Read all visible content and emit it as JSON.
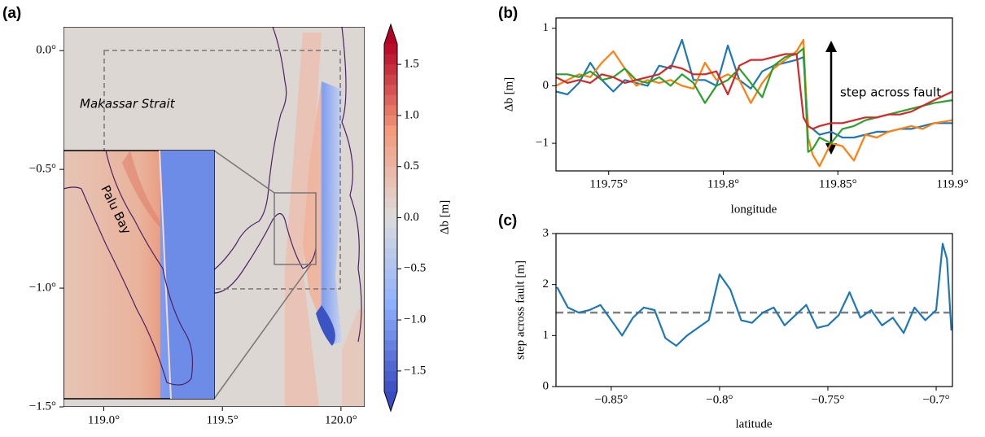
{
  "chart_data": [
    {
      "type": "map",
      "panel_label": "(a)",
      "xlim": [
        118.83,
        120.1
      ],
      "ylim": [
        -1.5,
        0.1
      ],
      "xticks": [
        {
          "value": 119.0,
          "label": "119.0°"
        },
        {
          "value": 119.5,
          "label": "119.5°"
        },
        {
          "value": 120.0,
          "label": "120.0°"
        }
      ],
      "yticks": [
        {
          "value": 0.0,
          "label": "0.0°"
        },
        {
          "value": -0.5,
          "label": "−0.5°"
        },
        {
          "value": -1.0,
          "label": "−1.0°"
        },
        {
          "value": -1.5,
          "label": "−1.5°"
        }
      ],
      "region_label": "Makassar Strait",
      "inset_label": "Palu Bay",
      "colorbar": {
        "label": "Δb [m]",
        "lim": [
          -1.7,
          1.7
        ],
        "colors": [
          "#3b4cc0",
          "#8db0fe",
          "#dddcdc",
          "#f49a7b",
          "#b40426"
        ],
        "ticks": [
          {
            "value": 1.5,
            "label": "1.5"
          },
          {
            "value": 1.0,
            "label": "1.0"
          },
          {
            "value": 0.5,
            "label": "0.5"
          },
          {
            "value": 0.0,
            "label": "0.0"
          },
          {
            "value": -0.5,
            "label": "−0.5"
          },
          {
            "value": -1.0,
            "label": "−1.0"
          },
          {
            "value": -1.5,
            "label": "−1.5"
          }
        ]
      }
    },
    {
      "type": "line",
      "panel_label": "(b)",
      "xlabel": "longitude",
      "ylabel": "Δb [m]",
      "annotation": "step across fault",
      "xlim": [
        119.727,
        119.9
      ],
      "ylim": [
        -1.48,
        1.18
      ],
      "xticks": [
        {
          "value": 119.75,
          "label": "119.75°"
        },
        {
          "value": 119.8,
          "label": "119.8°"
        },
        {
          "value": 119.85,
          "label": "119.85°"
        },
        {
          "value": 119.9,
          "label": "119.9°"
        }
      ],
      "yticks": [
        1,
        0,
        {
          "value": -1,
          "label": "−1"
        }
      ],
      "x": [
        119.727,
        119.732,
        119.737,
        119.742,
        119.747,
        119.752,
        119.757,
        119.762,
        119.767,
        119.772,
        119.777,
        119.782,
        119.787,
        119.792,
        119.797,
        119.802,
        119.807,
        119.812,
        119.817,
        119.822,
        119.827,
        119.832,
        119.835,
        119.837,
        119.839,
        119.842,
        119.847,
        119.852,
        119.857,
        119.862,
        119.867,
        119.872,
        119.877,
        119.882,
        119.887,
        119.892,
        119.9
      ],
      "series": [
        {
          "color": "#1f77b4",
          "values": [
            -0.1,
            -0.15,
            0.05,
            0.4,
            0.1,
            -0.1,
            0.1,
            0.05,
            0.0,
            0.35,
            0.3,
            0.8,
            0.1,
            0.1,
            0.0,
            0.7,
            0.1,
            -0.05,
            0.25,
            0.35,
            0.4,
            0.45,
            0.5,
            -0.7,
            -0.75,
            -0.85,
            -0.8,
            -0.9,
            -0.9,
            -0.85,
            -0.8,
            -0.8,
            -0.75,
            -0.75,
            -0.7,
            -0.65,
            -0.65
          ]
        },
        {
          "color": "#ff7f0e",
          "values": [
            0.0,
            0.1,
            0.2,
            0.15,
            0.4,
            0.6,
            0.3,
            0.0,
            0.1,
            0.05,
            0.1,
            0.0,
            -0.05,
            0.4,
            0.1,
            0.2,
            0.1,
            -0.3,
            0.05,
            0.3,
            0.45,
            0.6,
            0.8,
            -0.9,
            -1.2,
            -1.4,
            -1.0,
            -1.05,
            -1.3,
            -0.85,
            -0.9,
            -0.8,
            -0.75,
            -0.7,
            -0.75,
            -0.65,
            -0.6
          ]
        },
        {
          "color": "#2ca02c",
          "values": [
            0.2,
            0.2,
            0.15,
            0.25,
            0.1,
            0.15,
            0.3,
            0.1,
            0.05,
            0.15,
            0.0,
            0.2,
            0.05,
            -0.3,
            0.0,
            0.1,
            0.3,
            0.05,
            -0.2,
            0.35,
            0.5,
            0.55,
            0.65,
            -1.15,
            -1.1,
            -0.9,
            -1.0,
            -0.75,
            -0.7,
            -0.6,
            -0.55,
            -0.5,
            -0.45,
            -0.4,
            -0.35,
            -0.3,
            -0.25
          ]
        },
        {
          "color": "#d62728",
          "values": [
            0.15,
            0.05,
            0.1,
            0.05,
            0.2,
            0.15,
            0.05,
            0.1,
            0.15,
            0.2,
            0.35,
            0.3,
            0.2,
            0.2,
            0.25,
            -0.15,
            0.35,
            0.45,
            0.45,
            0.5,
            0.55,
            0.55,
            -0.55,
            -0.7,
            -0.75,
            -0.7,
            -0.65,
            -0.65,
            -0.6,
            -0.55,
            -0.55,
            -0.5,
            -0.5,
            -0.45,
            -0.35,
            -0.25,
            -0.1
          ]
        }
      ]
    },
    {
      "type": "line",
      "panel_label": "(c)",
      "xlabel": "latitude",
      "ylabel": "step across fault [m]",
      "xlim": [
        -0.8755,
        -0.6925
      ],
      "ylim": [
        0,
        3
      ],
      "xticks": [
        {
          "value": -0.85,
          "label": "−0.85°"
        },
        {
          "value": -0.8,
          "label": "−0.8°"
        },
        {
          "value": -0.75,
          "label": "−0.75°"
        },
        {
          "value": -0.7,
          "label": "−0.7°"
        }
      ],
      "yticks": [
        0,
        1,
        2,
        3
      ],
      "reference_line": {
        "value": 1.45,
        "color": "#808080"
      },
      "x": [
        -0.875,
        -0.87,
        -0.865,
        -0.86,
        -0.855,
        -0.85,
        -0.845,
        -0.84,
        -0.835,
        -0.83,
        -0.825,
        -0.82,
        -0.815,
        -0.81,
        -0.805,
        -0.8,
        -0.795,
        -0.79,
        -0.785,
        -0.78,
        -0.775,
        -0.77,
        -0.765,
        -0.76,
        -0.755,
        -0.75,
        -0.745,
        -0.74,
        -0.735,
        -0.73,
        -0.725,
        -0.72,
        -0.715,
        -0.71,
        -0.705,
        -0.7,
        -0.697,
        -0.695,
        -0.693
      ],
      "series": [
        {
          "color": "#1f77b4",
          "values": [
            1.95,
            1.55,
            1.45,
            1.5,
            1.6,
            1.3,
            1.0,
            1.35,
            1.55,
            1.5,
            0.95,
            0.8,
            1.0,
            1.15,
            1.3,
            2.2,
            1.9,
            1.3,
            1.25,
            1.45,
            1.55,
            1.2,
            1.4,
            1.6,
            1.15,
            1.2,
            1.4,
            1.85,
            1.35,
            1.5,
            1.2,
            1.35,
            1.05,
            1.55,
            1.3,
            1.5,
            2.8,
            2.5,
            1.1
          ]
        }
      ]
    }
  ]
}
